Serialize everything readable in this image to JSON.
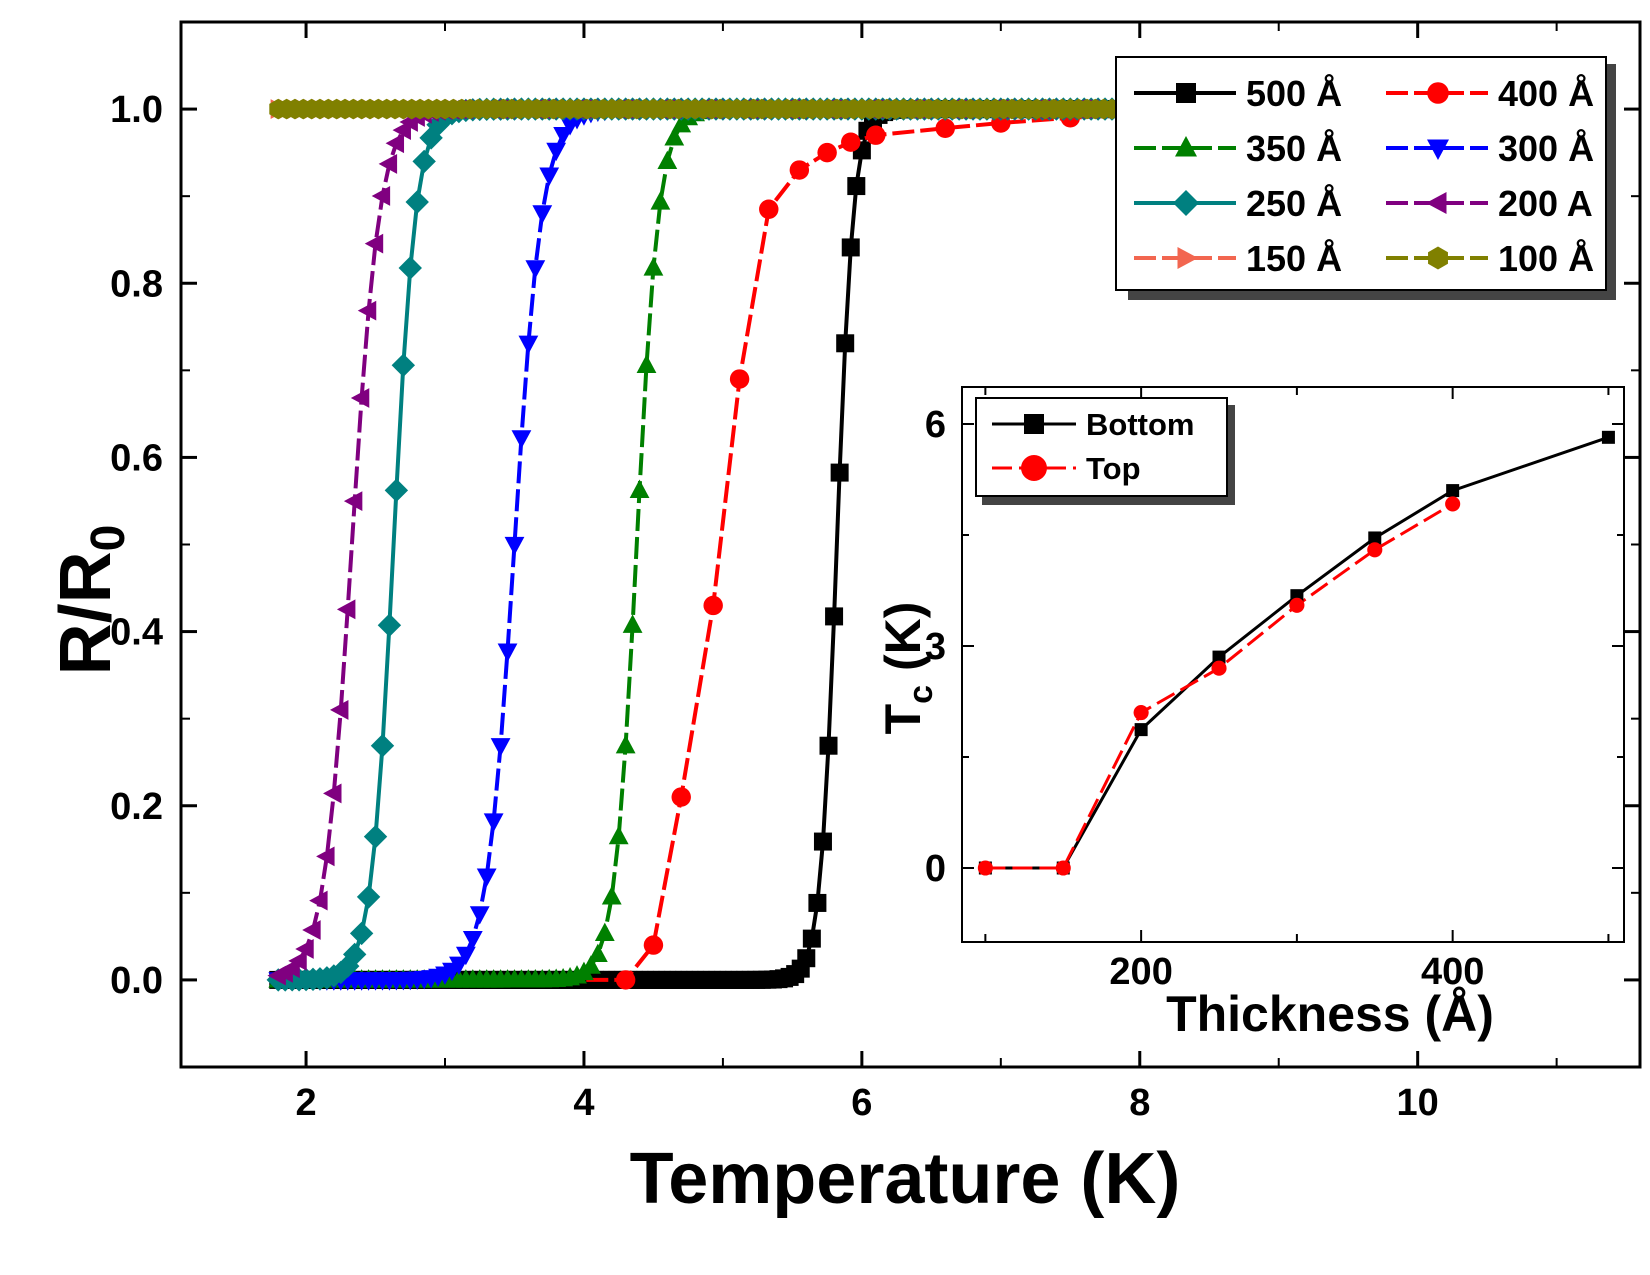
{
  "chart_data": {
    "type": "line",
    "title": "",
    "xlabel": "Temperature (K)",
    "ylabel_main": "R/R",
    "ylabel_sub": "0",
    "xlim": [
      1.1,
      11.6
    ],
    "ylim": [
      -0.1,
      1.1
    ],
    "x_ticks": [
      2,
      4,
      6,
      8,
      10
    ],
    "x_tick_labels": [
      "2",
      "4",
      "6",
      "8",
      "10"
    ],
    "y_ticks": [
      0.0,
      0.2,
      0.4,
      0.6,
      0.8,
      1.0
    ],
    "y_tick_labels": [
      "0.0",
      "0.2",
      "0.4",
      "0.6",
      "0.8",
      "1.0"
    ],
    "legend_position": "top-right",
    "series": [
      {
        "name": "500 Å",
        "label": "500 Å",
        "color": "#000000",
        "marker": "square",
        "dash": "solid",
        "Tc": 5.82,
        "width": 0.06,
        "start": 1.8,
        "end": 10.95,
        "step": 0.04
      },
      {
        "name": "400 Å",
        "label": "400 Å",
        "color": "#ff0000",
        "marker": "circle",
        "dash": "dashed",
        "Tc": 4.98,
        "width": 0.22,
        "start": 4.3,
        "end": 10.95,
        "step": 0.2,
        "tail_from": 5.5,
        "tail_slope": 0.008
      },
      {
        "name": "350 Å",
        "label": "350 Å",
        "color": "#008000",
        "marker": "triangle-up",
        "dash": "dashed",
        "Tc": 4.38,
        "width": 0.08,
        "start": 1.8,
        "end": 10.95,
        "step": 0.05
      },
      {
        "name": "300 Å",
        "label": "300 Å",
        "color": "#0000ff",
        "marker": "triangle-down",
        "dash": "dashed",
        "Tc": 3.5,
        "width": 0.1,
        "start": 1.8,
        "end": 10.95,
        "step": 0.05
      },
      {
        "name": "250 Å",
        "label": "250 Å",
        "color": "#008080",
        "marker": "diamond",
        "dash": "solid",
        "Tc": 2.63,
        "width": 0.08,
        "start": 1.8,
        "end": 10.95,
        "step": 0.05
      },
      {
        "name": "200 A",
        "label": "200 A",
        "color": "#800080",
        "marker": "triangle-left",
        "dash": "dashed",
        "Tc": 2.33,
        "width": 0.1,
        "start": 1.8,
        "end": 10.95,
        "step": 0.05
      },
      {
        "name": "150 Å",
        "label": "150 Å",
        "color": "#f26650",
        "marker": "triangle-right",
        "dash": "dashed",
        "Tc": 0,
        "width": 0,
        "start": 1.8,
        "end": 10.95,
        "step": 0.06
      },
      {
        "name": "100 Å",
        "label": "100 Å",
        "color": "#808000",
        "marker": "hexagon",
        "dash": "dashed",
        "Tc": 0,
        "width": 0,
        "start": 1.8,
        "end": 10.95,
        "step": 0.06
      }
    ],
    "inset": {
      "type": "line",
      "xlabel": "Thickness (Å)",
      "ylabel_main": "T",
      "ylabel_sub": "c",
      "ylabel_suffix": " (K)",
      "xlim": [
        85,
        510
      ],
      "ylim": [
        -1,
        6.5
      ],
      "x_ticks": [
        100,
        200,
        300,
        400,
        500
      ],
      "x_tick_labels": [
        "",
        "200",
        "",
        "400",
        ""
      ],
      "y_ticks": [
        0,
        3,
        6
      ],
      "y_tick_labels": [
        "0",
        "3",
        "6"
      ],
      "legend_position": "top-left",
      "series": [
        {
          "name": "Bottom",
          "color": "#000000",
          "marker": "square",
          "dash": "solid",
          "x": [
            100,
            150,
            200,
            250,
            300,
            350,
            400,
            500
          ],
          "y": [
            0,
            0,
            1.87,
            2.85,
            3.68,
            4.46,
            5.1,
            5.82
          ]
        },
        {
          "name": "Top",
          "color": "#ff0000",
          "marker": "circle",
          "dash": "dashed",
          "x": [
            100,
            150,
            200,
            250,
            300,
            350,
            400
          ],
          "y": [
            0,
            0,
            2.1,
            2.7,
            3.55,
            4.3,
            4.92
          ]
        }
      ]
    }
  }
}
